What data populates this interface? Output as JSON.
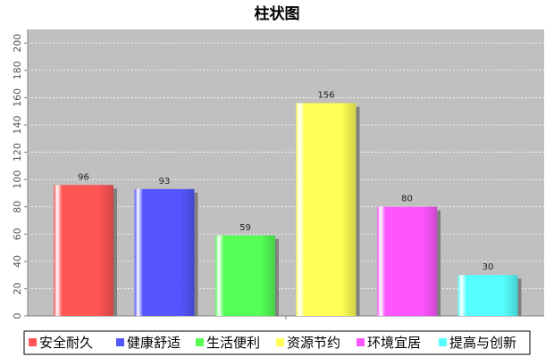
{
  "chart_data": {
    "type": "bar",
    "title": "柱状图",
    "xlabel": "",
    "ylabel": "",
    "ylim": [
      0,
      210
    ],
    "yticks": [
      0,
      20,
      40,
      60,
      80,
      100,
      120,
      140,
      160,
      180,
      200
    ],
    "grid": true,
    "legend_position": "bottom",
    "value_labels": true,
    "categories": [
      "安全耐久",
      "健康舒适",
      "生活便利",
      "资源节约",
      "环境宜居",
      "提高与创新"
    ],
    "values": [
      96,
      93,
      59,
      156,
      80,
      30
    ],
    "colors": [
      "#ff5555",
      "#5555ff",
      "#55ff55",
      "#ffff55",
      "#ff55ff",
      "#55ffff"
    ],
    "plot_background": "#c0c0c0"
  }
}
